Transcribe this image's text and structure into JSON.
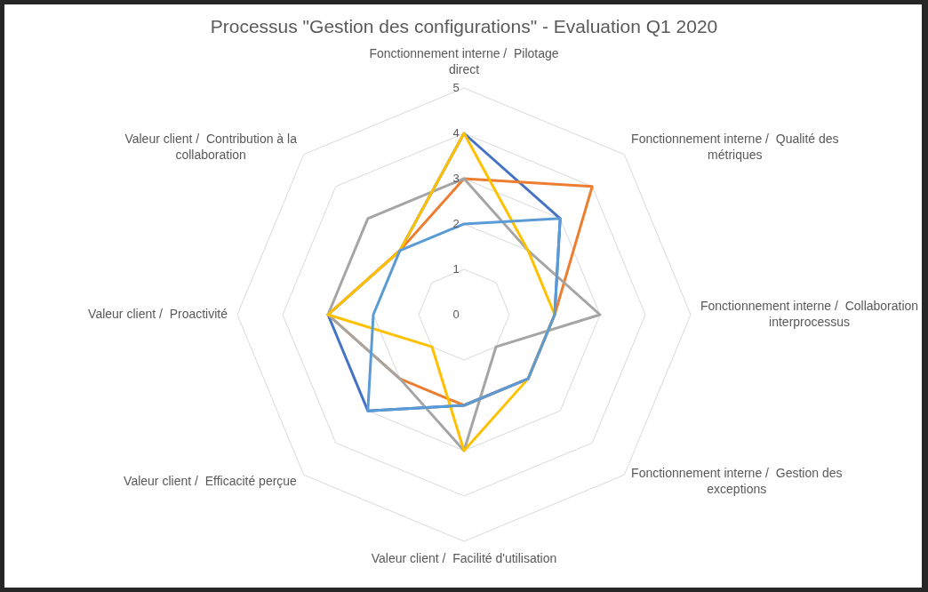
{
  "chart_data": {
    "type": "radar",
    "title": "Processus \"Gestion des configurations\" - Evaluation Q1 2020",
    "categories": [
      "Fonctionnement interne /  Pilotage direct",
      "Fonctionnement interne /  Qualité des métriques",
      "Fonctionnement interne /  Collaboration interprocessus",
      "Fonctionnement interne /  Gestion des exceptions",
      "Valeur client /  Facilité d'utilisation",
      "Valeur client /  Efficacité perçue",
      "Valeur client /  Proactivité",
      "Valeur client /  Contribution à la collaboration"
    ],
    "series": [
      {
        "color": "#4472c4",
        "values": [
          4,
          3,
          2,
          2,
          2,
          3,
          3,
          2
        ]
      },
      {
        "color": "#ed7d31",
        "values": [
          3,
          4,
          2,
          2,
          2,
          2,
          3,
          2
        ]
      },
      {
        "color": "#a5a5a5",
        "values": [
          3,
          2,
          3,
          1,
          3,
          2,
          3,
          3
        ]
      },
      {
        "color": "#ffc000",
        "values": [
          4,
          2,
          2,
          2,
          3,
          1,
          3,
          2
        ]
      },
      {
        "color": "#5b9bd5",
        "values": [
          2,
          3,
          2,
          2,
          2,
          3,
          2,
          2
        ]
      }
    ],
    "ylim": [
      0,
      5
    ],
    "yticks": [
      0,
      1,
      2,
      3,
      4,
      5
    ],
    "grid": true,
    "marker": "none",
    "line_style": "solid"
  }
}
